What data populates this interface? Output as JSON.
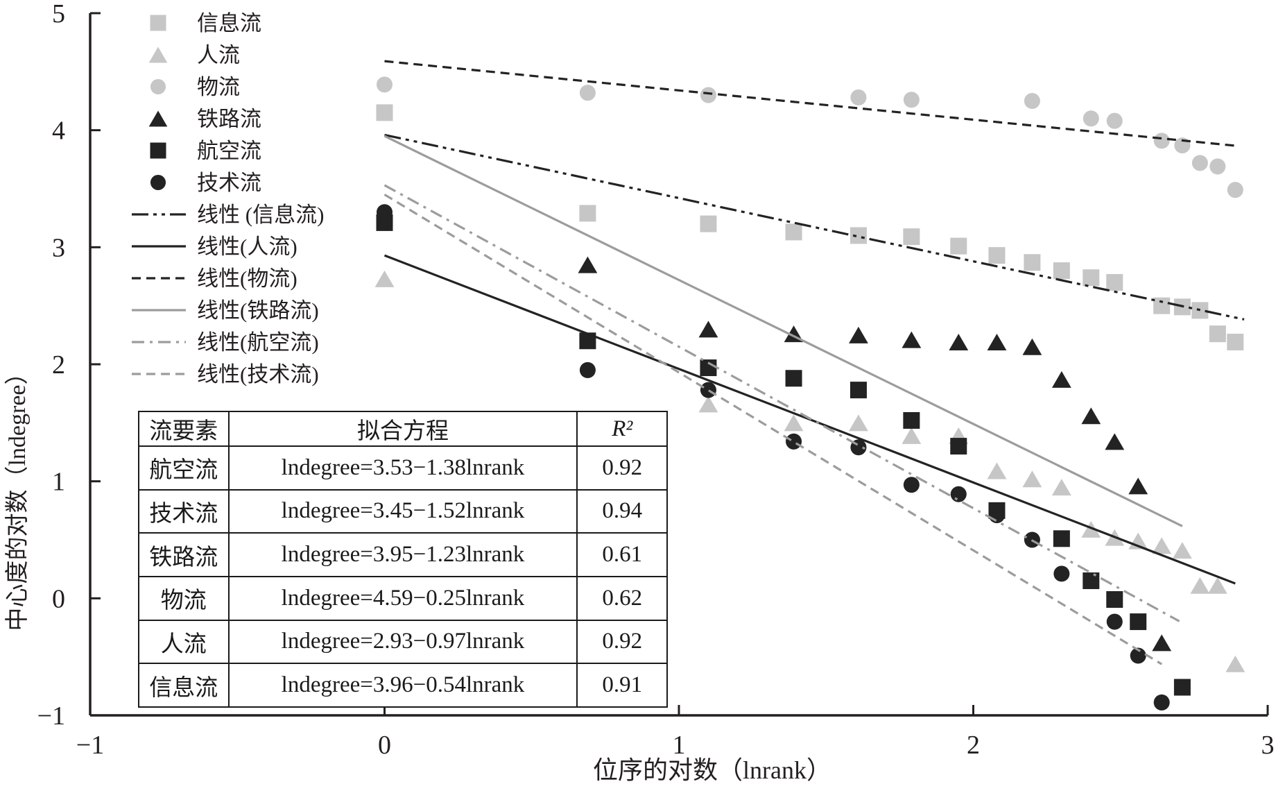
{
  "figure": {
    "background": "#ffffff",
    "axis_color": "#231f20",
    "light_gray": "#c6c6c6",
    "dark": "#232323",
    "gray_line": "#9c9c9c"
  },
  "legend": {
    "items": [
      {
        "id": "info-flow",
        "label": "信息流",
        "marker": "square",
        "color": "#c6c6c6"
      },
      {
        "id": "people-flow",
        "label": "人流",
        "marker": "triangle",
        "color": "#c6c6c6"
      },
      {
        "id": "logistics-flow",
        "label": "物流",
        "marker": "circle",
        "color": "#c6c6c6"
      },
      {
        "id": "railway-flow",
        "label": "铁路流",
        "marker": "triangle",
        "color": "#232323"
      },
      {
        "id": "aviation-flow",
        "label": "航空流",
        "marker": "square",
        "color": "#232323"
      },
      {
        "id": "technology-flow",
        "label": "技术流",
        "marker": "circle",
        "color": "#232323"
      },
      {
        "id": "trend-info",
        "label": "线性 (信息流)",
        "line": "dashdotdot",
        "color": "#232323"
      },
      {
        "id": "trend-people",
        "label": "线性(人流)",
        "line": "solid",
        "color": "#232323"
      },
      {
        "id": "trend-logistics",
        "label": "线性(物流)",
        "line": "dashed",
        "color": "#232323"
      },
      {
        "id": "trend-railway",
        "label": "线性(铁路流)",
        "line": "solid",
        "color": "#9c9c9c"
      },
      {
        "id": "trend-aviation",
        "label": "线性(航空流)",
        "line": "dashdot",
        "color": "#9c9c9c"
      },
      {
        "id": "trend-technology",
        "label": "线性(技术流)",
        "line": "dashed",
        "color": "#9c9c9c"
      }
    ]
  },
  "table": {
    "headers": [
      "流要素",
      "拟合方程",
      "R²"
    ],
    "rows": [
      [
        "航空流",
        "lndegree=3.53−1.38lnrank",
        "0.92"
      ],
      [
        "技术流",
        "lndegree=3.45−1.52lnrank",
        "0.94"
      ],
      [
        "铁路流",
        "lndegree=3.95−1.23lnrank",
        "0.61"
      ],
      [
        "物流",
        "lndegree=4.59−0.25lnrank",
        "0.62"
      ],
      [
        "人流",
        "lndegree=2.93−0.97lnrank",
        "0.92"
      ],
      [
        "信息流",
        "lndegree=3.96−0.54lnrank",
        "0.91"
      ]
    ]
  },
  "chart_data": {
    "type": "scatter",
    "title": "",
    "xlabel": "位序的对数（lnrank）",
    "ylabel": "中心度的对数（lndegree）",
    "xlim": [
      -1,
      3
    ],
    "ylim": [
      -1,
      5
    ],
    "x_ticks": [
      -1,
      0,
      1,
      2,
      3
    ],
    "x_tick_labels": [
      "−1",
      "0",
      "1",
      "2",
      "3"
    ],
    "y_ticks": [
      5,
      4,
      3,
      2,
      1,
      0,
      -1
    ],
    "y_tick_labels": [
      "5",
      "4",
      "3",
      "2",
      "1",
      "0",
      "−1"
    ],
    "grid": false,
    "legend_position": "top-left",
    "series": [
      {
        "id": "logistics-flow",
        "name": "物流",
        "marker": "circle",
        "color": "#c6c6c6",
        "points": [
          [
            0,
            4.39
          ],
          [
            0.69,
            4.32
          ],
          [
            1.1,
            4.3
          ],
          [
            1.61,
            4.28
          ],
          [
            1.79,
            4.26
          ],
          [
            2.2,
            4.25
          ],
          [
            2.4,
            4.1
          ],
          [
            2.48,
            4.08
          ],
          [
            2.64,
            3.91
          ],
          [
            2.71,
            3.87
          ],
          [
            2.77,
            3.72
          ],
          [
            2.83,
            3.69
          ],
          [
            2.89,
            3.49
          ]
        ]
      },
      {
        "id": "info-flow",
        "name": "信息流",
        "marker": "square",
        "color": "#c6c6c6",
        "points": [
          [
            0,
            4.15
          ],
          [
            0.69,
            3.29
          ],
          [
            1.1,
            3.2
          ],
          [
            1.39,
            3.13
          ],
          [
            1.61,
            3.1
          ],
          [
            1.79,
            3.09
          ],
          [
            1.95,
            3.01
          ],
          [
            2.08,
            2.93
          ],
          [
            2.2,
            2.87
          ],
          [
            2.3,
            2.8
          ],
          [
            2.4,
            2.74
          ],
          [
            2.48,
            2.7
          ],
          [
            2.64,
            2.5
          ],
          [
            2.71,
            2.49
          ],
          [
            2.77,
            2.46
          ],
          [
            2.83,
            2.26
          ],
          [
            2.89,
            2.19
          ]
        ]
      },
      {
        "id": "people-flow",
        "name": "人流",
        "marker": "triangle",
        "color": "#c6c6c6",
        "points": [
          [
            0,
            2.73
          ],
          [
            1.1,
            1.66
          ],
          [
            1.39,
            1.5
          ],
          [
            1.61,
            1.5
          ],
          [
            1.79,
            1.39
          ],
          [
            1.95,
            1.39
          ],
          [
            2.08,
            1.09
          ],
          [
            2.2,
            1.02
          ],
          [
            2.3,
            0.95
          ],
          [
            2.4,
            0.59
          ],
          [
            2.48,
            0.52
          ],
          [
            2.56,
            0.49
          ],
          [
            2.64,
            0.45
          ],
          [
            2.71,
            0.41
          ],
          [
            2.77,
            0.11
          ],
          [
            2.83,
            0.11
          ],
          [
            2.89,
            -0.56
          ]
        ]
      },
      {
        "id": "technology-flow",
        "name": "技术流",
        "marker": "circle",
        "color": "#232323",
        "points": [
          [
            0,
            3.3
          ],
          [
            0.69,
            1.95
          ],
          [
            1.1,
            1.78
          ],
          [
            1.39,
            1.34
          ],
          [
            1.61,
            1.29
          ],
          [
            1.79,
            0.97
          ],
          [
            1.95,
            0.89
          ],
          [
            2.08,
            0.71
          ],
          [
            2.2,
            0.5
          ],
          [
            2.3,
            0.21
          ],
          [
            2.48,
            -0.2
          ],
          [
            2.56,
            -0.49
          ],
          [
            2.64,
            -0.89
          ]
        ]
      },
      {
        "id": "railway-flow",
        "name": "铁路流",
        "marker": "triangle",
        "color": "#232323",
        "points": [
          [
            0.69,
            2.85
          ],
          [
            1.1,
            2.3
          ],
          [
            1.39,
            2.26
          ],
          [
            1.61,
            2.25
          ],
          [
            1.79,
            2.21
          ],
          [
            1.95,
            2.19
          ],
          [
            2.08,
            2.19
          ],
          [
            2.2,
            2.15
          ],
          [
            2.3,
            1.87
          ],
          [
            2.4,
            1.56
          ],
          [
            2.48,
            1.34
          ],
          [
            2.56,
            0.96
          ],
          [
            2.64,
            -0.38
          ]
        ]
      },
      {
        "id": "aviation-flow",
        "name": "航空流",
        "marker": "square",
        "color": "#232323",
        "points": [
          [
            0,
            3.21
          ],
          [
            0.69,
            2.2
          ],
          [
            1.1,
            1.97
          ],
          [
            1.39,
            1.88
          ],
          [
            1.61,
            1.78
          ],
          [
            1.79,
            1.52
          ],
          [
            1.95,
            1.3
          ],
          [
            2.08,
            0.75
          ],
          [
            2.3,
            0.51
          ],
          [
            2.4,
            0.15
          ],
          [
            2.48,
            -0.01
          ],
          [
            2.56,
            -0.2
          ],
          [
            2.71,
            -0.76
          ]
        ]
      }
    ],
    "trend_lines": [
      {
        "id": "trend-info",
        "name": "线性 (信息流)",
        "equation": "lndegree=3.96−0.54lnrank",
        "intercept": 3.96,
        "slope": -0.54,
        "r2": 0.91,
        "x_range": [
          0,
          2.92
        ],
        "style": "dashdotdot",
        "color": "#232323"
      },
      {
        "id": "trend-people",
        "name": "线性(人流)",
        "equation": "lndegree=2.93−0.97lnrank",
        "intercept": 2.93,
        "slope": -0.97,
        "r2": 0.92,
        "x_range": [
          0,
          2.89
        ],
        "style": "solid",
        "color": "#232323"
      },
      {
        "id": "trend-logistics",
        "name": "线性(物流)",
        "equation": "lndegree=4.59−0.25lnrank",
        "intercept": 4.59,
        "slope": -0.25,
        "r2": 0.62,
        "x_range": [
          0,
          2.9
        ],
        "style": "dashed",
        "color": "#232323"
      },
      {
        "id": "trend-railway",
        "name": "线性(铁路流)",
        "equation": "lndegree=3.95−1.23lnrank",
        "intercept": 3.95,
        "slope": -1.23,
        "r2": 0.61,
        "x_range": [
          0,
          2.71
        ],
        "style": "solid",
        "color": "#9c9c9c"
      },
      {
        "id": "trend-aviation",
        "name": "线性(航空流)",
        "equation": "lndegree=3.53−1.38lnrank",
        "intercept": 3.53,
        "slope": -1.38,
        "r2": 0.92,
        "x_range": [
          0,
          2.7
        ],
        "style": "dashdot",
        "color": "#9c9c9c"
      },
      {
        "id": "trend-technology",
        "name": "线性(技术流)",
        "equation": "lndegree=3.45−1.52lnrank",
        "intercept": 3.45,
        "slope": -1.52,
        "r2": 0.94,
        "x_range": [
          0,
          2.64
        ],
        "style": "dashed",
        "color": "#9c9c9c"
      }
    ]
  }
}
